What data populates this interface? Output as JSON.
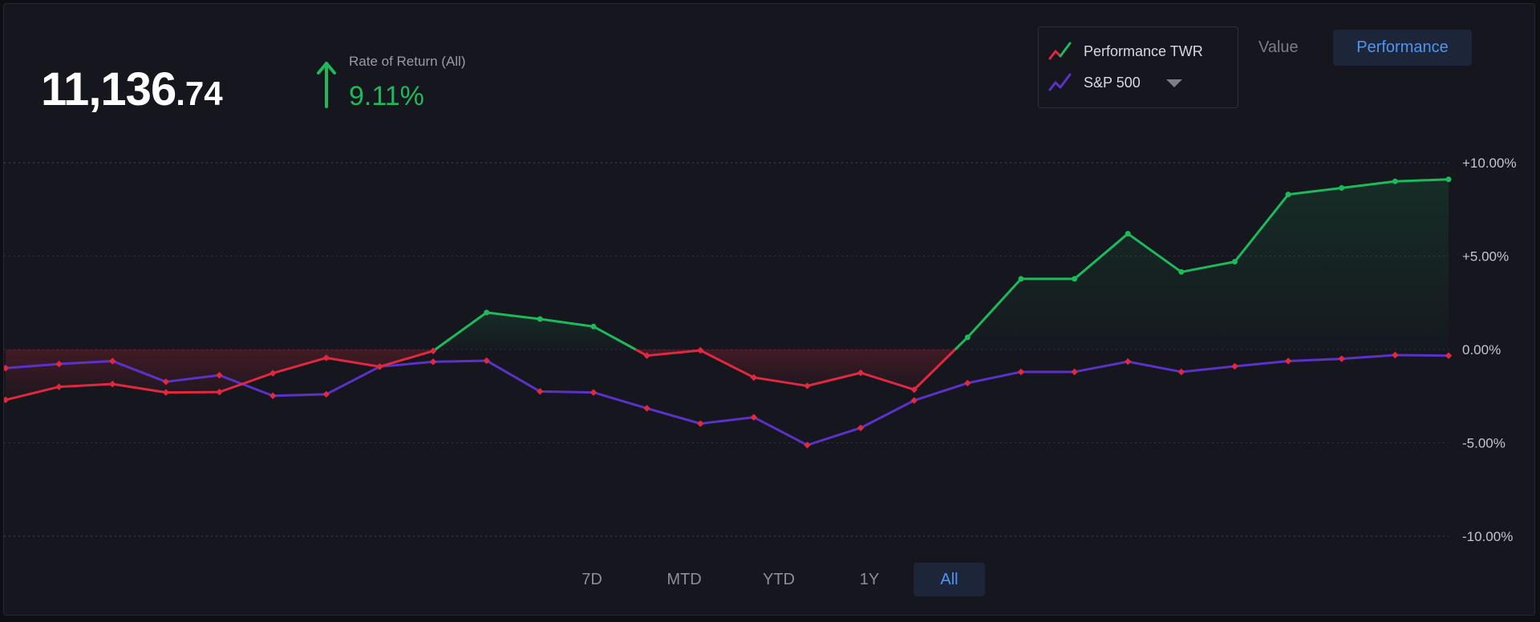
{
  "summary": {
    "value_int": "11,136",
    "value_cents": ".74",
    "ror_label": "Rate of Return (All)",
    "ror_value": "9.11%"
  },
  "legend": {
    "items": [
      {
        "label": "Performance TWR",
        "icon": "performance-line-icon"
      },
      {
        "label": "S&P 500",
        "icon": "benchmark-line-icon"
      }
    ]
  },
  "view_toggle": {
    "value_label": "Value",
    "performance_label": "Performance",
    "active": "Performance"
  },
  "ranges": {
    "items": [
      "7D",
      "MTD",
      "YTD",
      "1Y",
      "All"
    ],
    "active": "All"
  },
  "colors": {
    "positive": "#1fb85a",
    "negative": "#e0283e",
    "benchmark": "#5a32c8",
    "accent": "#4f94f0"
  },
  "chart_data": {
    "type": "line",
    "title": "",
    "xlabel": "",
    "ylabel": "",
    "ylim": [
      -10,
      10
    ],
    "y_ticks": [
      "+10.00%",
      "+5.00%",
      "0.00%",
      "-5.00%",
      "-10.00%"
    ],
    "y_tick_values": [
      10,
      5,
      0,
      -5,
      -10
    ],
    "grid": true,
    "legend": "top-right",
    "x": [
      0,
      1,
      2,
      3,
      4,
      5,
      6,
      7,
      8,
      9,
      10,
      11,
      12,
      13,
      14,
      15,
      16,
      17,
      18,
      19,
      20,
      21,
      22,
      23,
      24,
      25,
      26,
      27
    ],
    "series": [
      {
        "name": "Performance TWR",
        "values": [
          -2.7,
          -2.0,
          -1.85,
          -2.3,
          -2.28,
          -1.27,
          -0.45,
          -0.92,
          -0.08,
          1.98,
          1.63,
          1.23,
          -0.33,
          -0.05,
          -1.5,
          -1.95,
          -1.25,
          -2.15,
          0.65,
          3.78,
          3.78,
          6.2,
          4.15,
          4.7,
          8.3,
          8.65,
          9.0,
          9.11
        ],
        "colors": {
          "positive": "#1fb85a",
          "negative": "#e0283e"
        }
      },
      {
        "name": "S&P 500",
        "values": [
          -1.0,
          -0.78,
          -0.62,
          -1.73,
          -1.38,
          -2.48,
          -2.4,
          -0.92,
          -0.66,
          -0.6,
          -2.25,
          -2.3,
          -3.15,
          -3.97,
          -3.63,
          -5.12,
          -4.2,
          -2.73,
          -1.8,
          -1.2,
          -1.2,
          -0.65,
          -1.2,
          -0.9,
          -0.62,
          -0.5,
          -0.3,
          -0.33
        ],
        "color": "#5a32c8"
      }
    ]
  }
}
